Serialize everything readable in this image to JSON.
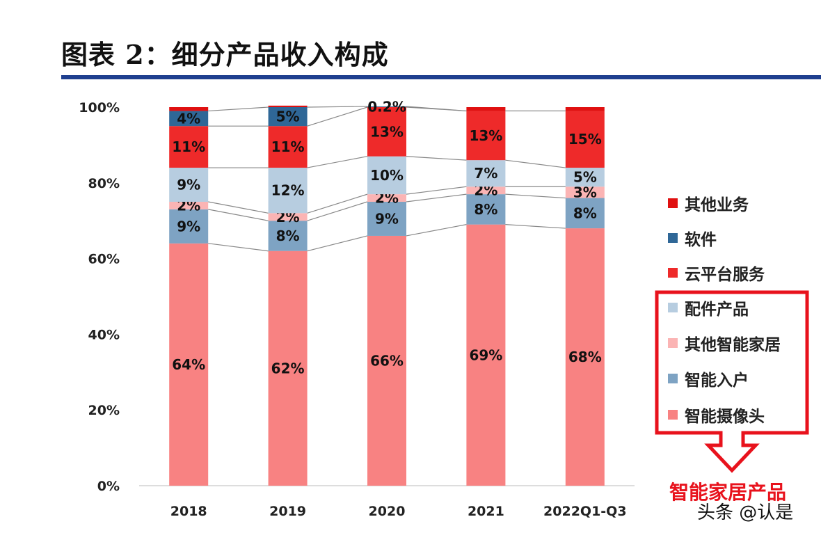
{
  "title": "图表 2：细分产品收入构成",
  "annotation": "智能家居产品",
  "watermark": "头条 @认是",
  "chart_data": {
    "type": "bar",
    "stacked": true,
    "percent": true,
    "categories": [
      "2018",
      "2019",
      "2020",
      "2021",
      "2022Q1-Q3"
    ],
    "ylim": [
      0,
      100
    ],
    "yticks": [
      "0%",
      "20%",
      "40%",
      "60%",
      "80%",
      "100%"
    ],
    "legend_position": "right",
    "series": [
      {
        "name": "智能摄像头",
        "color": "#f88282",
        "values": [
          64,
          62,
          66,
          69,
          68
        ],
        "labels": [
          "64%",
          "62%",
          "66%",
          "69%",
          "68%"
        ]
      },
      {
        "name": "智能入户",
        "color": "#7ea3c3",
        "values": [
          9,
          8,
          9,
          8,
          8
        ],
        "labels": [
          "9%",
          "8%",
          "9%",
          "8%",
          "8%"
        ]
      },
      {
        "name": "其他智能家居",
        "color": "#fbb4b4",
        "values": [
          2,
          2,
          2,
          2,
          3
        ],
        "labels": [
          "2%",
          "2%",
          "2%",
          "2%",
          "3%"
        ]
      },
      {
        "name": "配件产品",
        "color": "#b7cde0",
        "values": [
          9,
          12,
          10,
          7,
          5
        ],
        "labels": [
          "9%",
          "12%",
          "10%",
          "7%",
          "5%"
        ]
      },
      {
        "name": "云平台服务",
        "color": "#ee2a2a",
        "values": [
          11,
          11,
          13,
          13,
          15
        ],
        "labels": [
          "11%",
          "11%",
          "13%",
          "13%",
          "15%"
        ]
      },
      {
        "name": "软件",
        "color": "#2f6797",
        "values": [
          4,
          5,
          0.2,
          0,
          0
        ],
        "labels": [
          "4%",
          "5%",
          "0.2%",
          "",
          ""
        ]
      },
      {
        "name": "其他业务",
        "color": "#e01010",
        "values": [
          1,
          0.4,
          0,
          1,
          1
        ],
        "labels": [
          "",
          "",
          "",
          "",
          ""
        ]
      }
    ],
    "legend_order": [
      "其他业务",
      "软件",
      "云平台服务",
      "配件产品",
      "其他智能家居",
      "智能入户",
      "智能摄像头"
    ]
  }
}
